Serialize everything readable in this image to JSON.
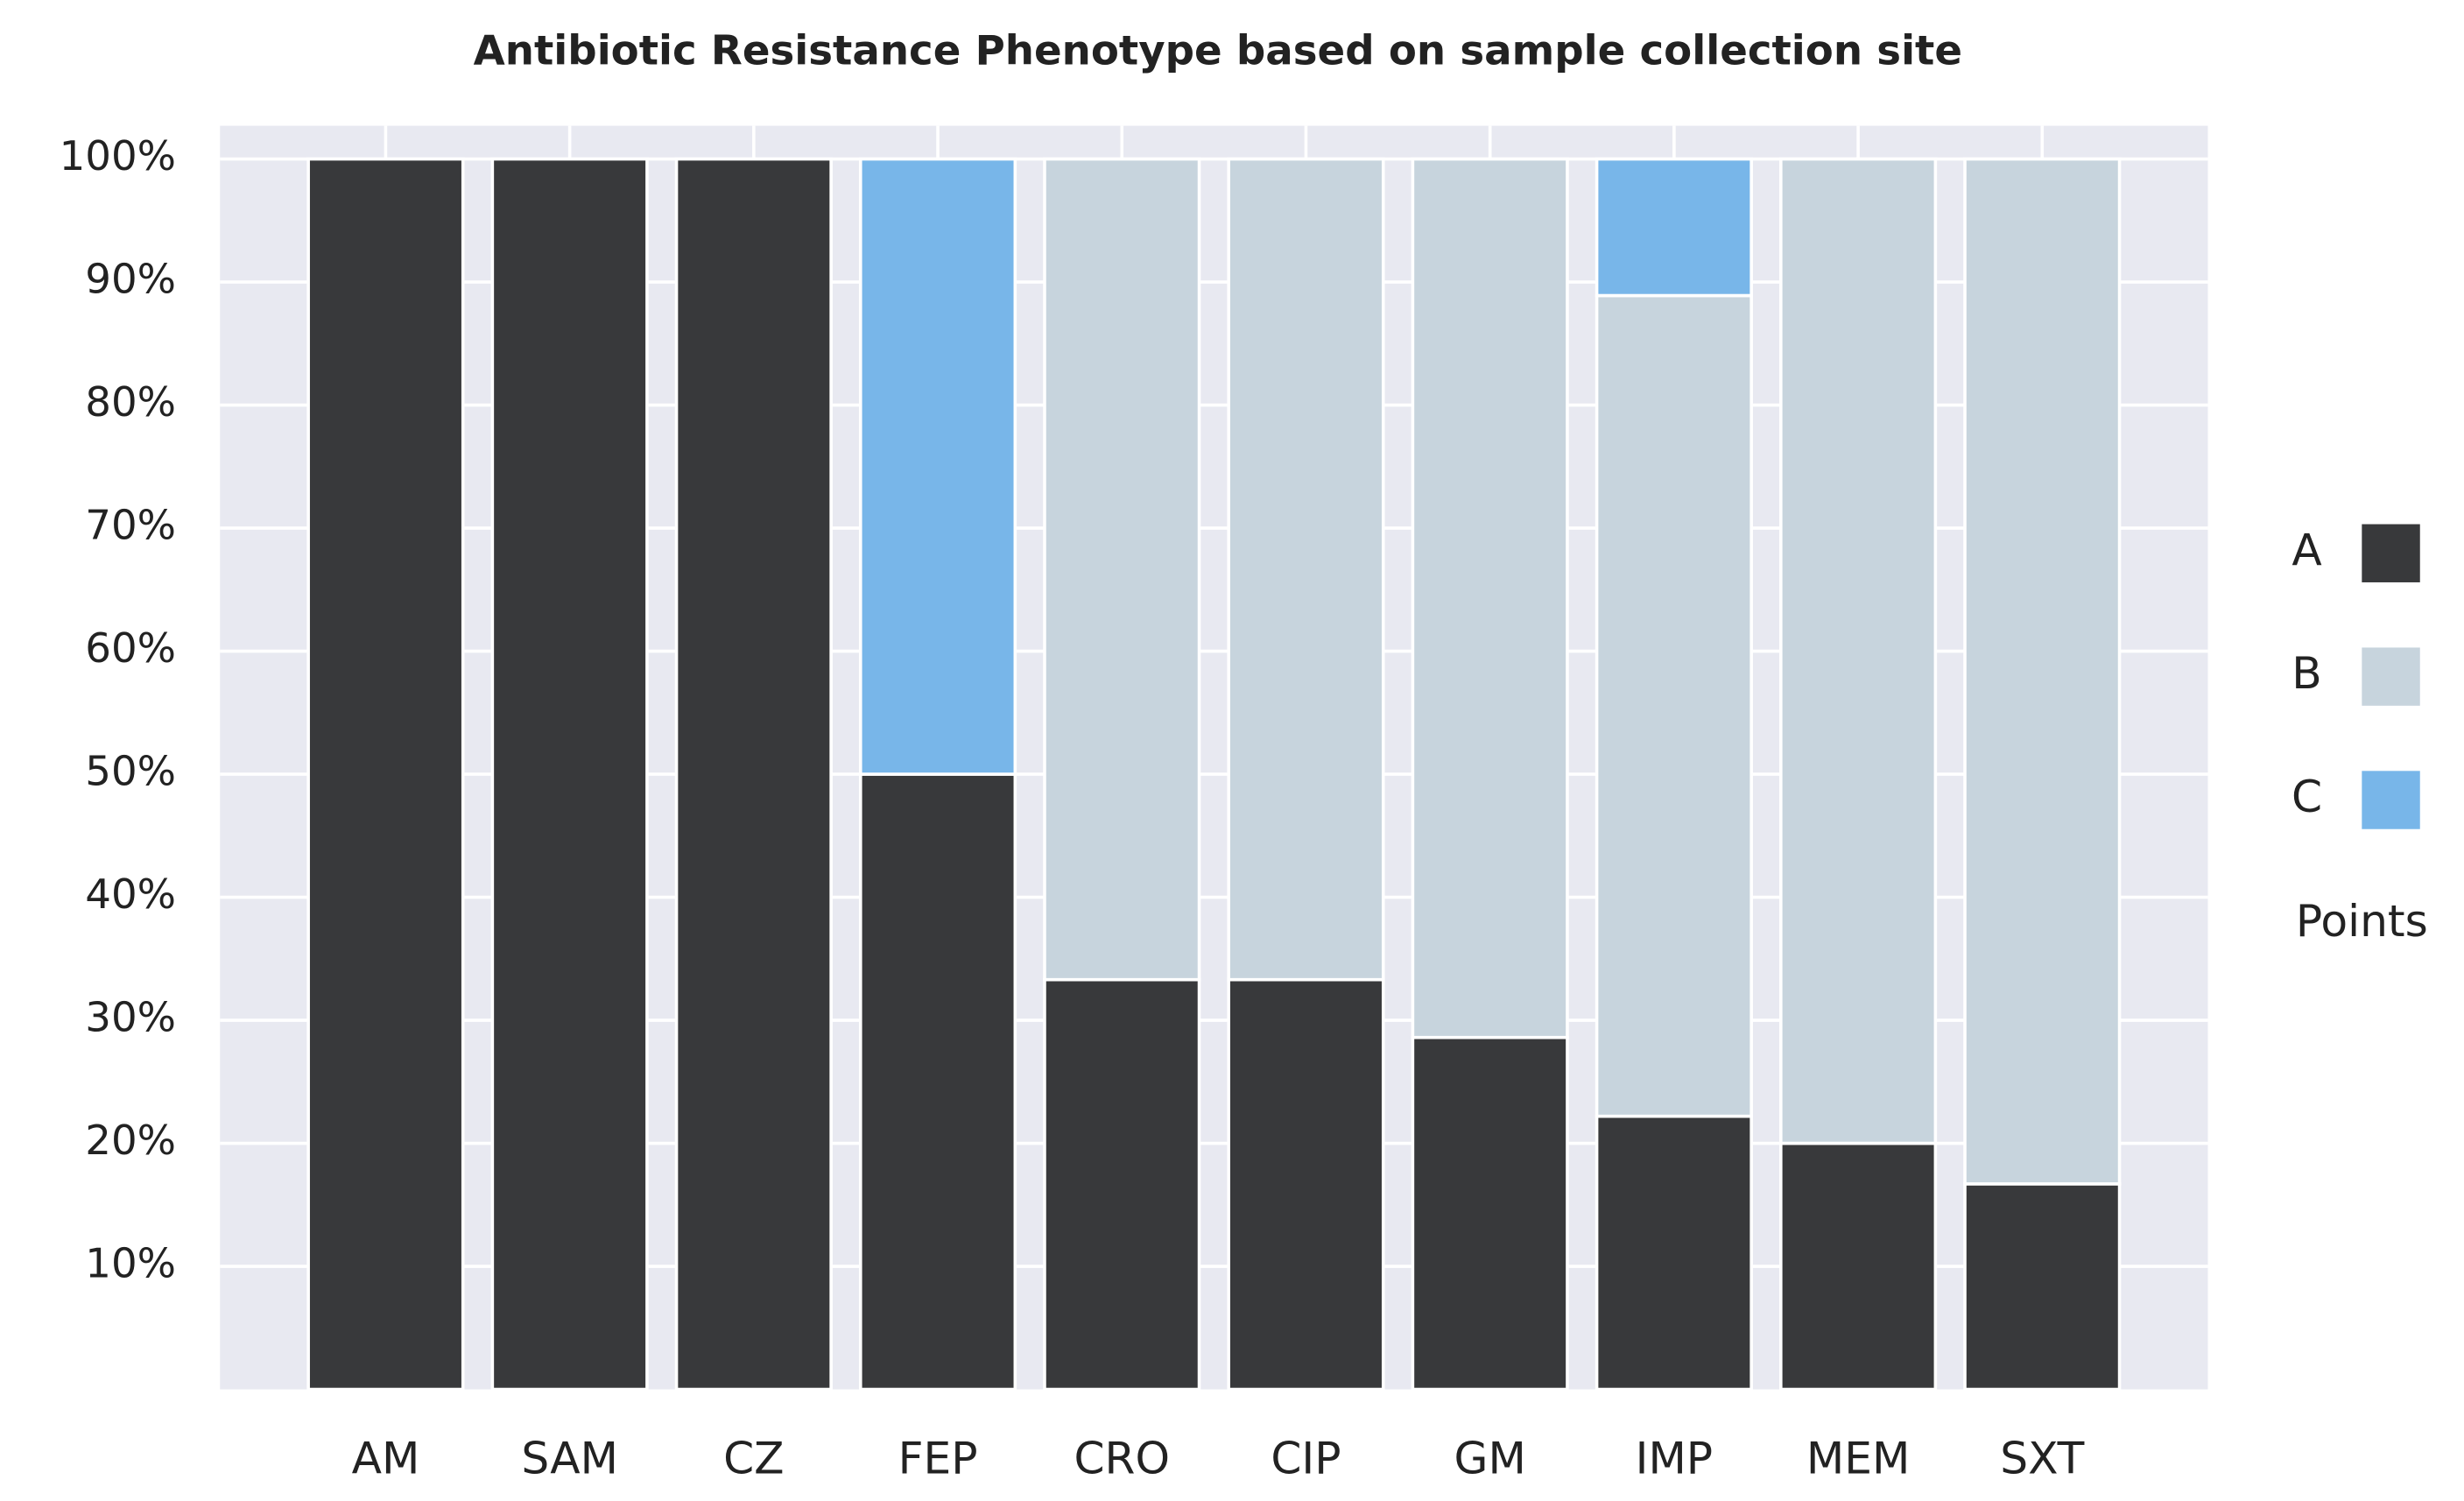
{
  "chart_data": {
    "type": "stacked_bar",
    "title": "Antibiotic Resistance Phenotype based on sample collection site",
    "categories": [
      "AM",
      "SAM",
      "CZ",
      "FEP",
      "CRO",
      "CIP",
      "GM",
      "IMP",
      "MEM",
      "SXT"
    ],
    "series": [
      {
        "name": "A",
        "color": "#38393b",
        "values": [
          100,
          100,
          100,
          50,
          33.3,
          33.3,
          28.6,
          22.2,
          20,
          16.7
        ]
      },
      {
        "name": "B",
        "color": "#c7d4dd",
        "values": [
          0,
          0,
          0,
          0,
          66.7,
          66.7,
          71.4,
          66.7,
          80,
          83.3
        ]
      },
      {
        "name": "C",
        "color": "#78b6e9",
        "values": [
          0,
          0,
          0,
          50,
          0,
          0,
          0,
          11.1,
          0,
          0
        ]
      }
    ],
    "legend_title": "Points",
    "ylim": [
      0,
      102.7
    ],
    "yticks": [
      {
        "value": 10,
        "label": "10%"
      },
      {
        "value": 20,
        "label": "20%"
      },
      {
        "value": 30,
        "label": "30%"
      },
      {
        "value": 40,
        "label": "40%"
      },
      {
        "value": 50,
        "label": "50%"
      },
      {
        "value": 60,
        "label": "60%"
      },
      {
        "value": 70,
        "label": "70%"
      },
      {
        "value": 80,
        "label": "80%"
      },
      {
        "value": 90,
        "label": "90%"
      },
      {
        "value": 100,
        "label": "100%"
      }
    ],
    "grid": true,
    "legend": "right"
  }
}
